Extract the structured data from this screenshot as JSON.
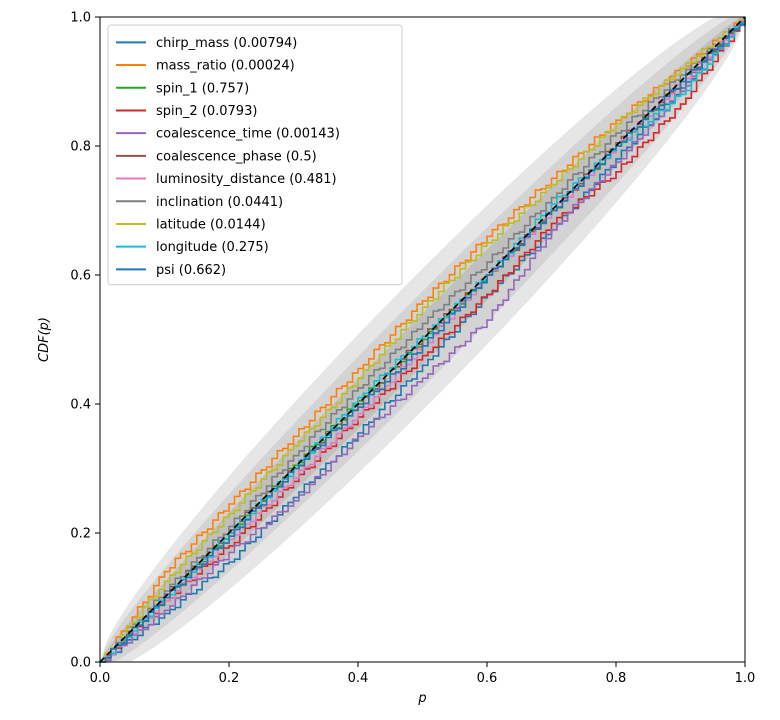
{
  "chart_data": {
    "type": "line",
    "title": "",
    "xlabel": "p",
    "ylabel": "CDF(p)",
    "xlim": [
      0,
      1
    ],
    "ylim": [
      0,
      1
    ],
    "x_ticks": [
      "0.0",
      "0.2",
      "0.4",
      "0.6",
      "0.8",
      "1.0"
    ],
    "y_ticks": [
      "0.0",
      "0.2",
      "0.4",
      "0.6",
      "0.8",
      "1.0"
    ],
    "grid": false,
    "legend_position": "top-left",
    "confidence_bands": {
      "description_levels": [
        "1-sigma",
        "2-sigma",
        "3-sigma"
      ],
      "half_width_at_p_0_5": [
        0.04,
        0.075,
        0.11
      ],
      "colors": [
        "#c0c0c0",
        "#d3d3d3",
        "#e6e6e6"
      ]
    },
    "diagonal": {
      "style": "dashed",
      "color": "#000000"
    },
    "series": [
      {
        "name": "chirp_mass (0.00794)",
        "color": "#1f77b4",
        "x": [
          0,
          0.1,
          0.2,
          0.3,
          0.4,
          0.5,
          0.6,
          0.7,
          0.8,
          0.9,
          1.0
        ],
        "y": [
          0,
          0.075,
          0.155,
          0.255,
          0.355,
          0.46,
          0.57,
          0.67,
          0.78,
          0.89,
          1.0
        ]
      },
      {
        "name": "mass_ratio (0.00024)",
        "color": "#ff7f0e",
        "x": [
          0,
          0.1,
          0.2,
          0.3,
          0.4,
          0.5,
          0.6,
          0.7,
          0.8,
          0.9,
          1.0
        ],
        "y": [
          0,
          0.14,
          0.245,
          0.35,
          0.455,
          0.56,
          0.66,
          0.75,
          0.84,
          0.92,
          1.0
        ]
      },
      {
        "name": "spin_1 (0.757)",
        "color": "#2ca02c",
        "x": [
          0,
          0.1,
          0.2,
          0.3,
          0.4,
          0.5,
          0.6,
          0.7,
          0.8,
          0.9,
          1.0
        ],
        "y": [
          0,
          0.1,
          0.2,
          0.305,
          0.405,
          0.5,
          0.6,
          0.7,
          0.8,
          0.9,
          1.0
        ]
      },
      {
        "name": "spin_2 (0.0793)",
        "color": "#d62728",
        "x": [
          0,
          0.1,
          0.2,
          0.3,
          0.4,
          0.5,
          0.6,
          0.7,
          0.8,
          0.9,
          1.0
        ],
        "y": [
          0,
          0.095,
          0.18,
          0.28,
          0.38,
          0.475,
          0.57,
          0.68,
          0.76,
          0.865,
          1.0
        ]
      },
      {
        "name": "coalescence_time (0.00143)",
        "color": "#9467bd",
        "x": [
          0,
          0.1,
          0.2,
          0.3,
          0.4,
          0.5,
          0.6,
          0.7,
          0.8,
          0.9,
          1.0
        ],
        "y": [
          0,
          0.08,
          0.17,
          0.25,
          0.35,
          0.44,
          0.53,
          0.67,
          0.775,
          0.885,
          1.0
        ]
      },
      {
        "name": "coalescence_phase (0.5)",
        "color": "#8c564b",
        "x": [
          0,
          0.1,
          0.2,
          0.3,
          0.4,
          0.5,
          0.6,
          0.7,
          0.8,
          0.9,
          1.0
        ],
        "y": [
          0,
          0.105,
          0.205,
          0.3,
          0.4,
          0.505,
          0.6,
          0.7,
          0.805,
          0.9,
          1.0
        ]
      },
      {
        "name": "luminosity_distance (0.481)",
        "color": "#e377c2",
        "x": [
          0,
          0.1,
          0.2,
          0.3,
          0.4,
          0.5,
          0.6,
          0.7,
          0.8,
          0.9,
          1.0
        ],
        "y": [
          0,
          0.095,
          0.19,
          0.285,
          0.385,
          0.49,
          0.6,
          0.7,
          0.8,
          0.9,
          1.0
        ]
      },
      {
        "name": "inclination (0.0441)",
        "color": "#7f7f7f",
        "x": [
          0,
          0.1,
          0.2,
          0.3,
          0.4,
          0.5,
          0.6,
          0.7,
          0.8,
          0.9,
          1.0
        ],
        "y": [
          0,
          0.11,
          0.21,
          0.32,
          0.425,
          0.525,
          0.62,
          0.72,
          0.82,
          0.91,
          1.0
        ]
      },
      {
        "name": "latitude (0.0144)",
        "color": "#bcbd22",
        "x": [
          0,
          0.1,
          0.2,
          0.3,
          0.4,
          0.5,
          0.6,
          0.7,
          0.8,
          0.9,
          1.0
        ],
        "y": [
          0,
          0.125,
          0.23,
          0.335,
          0.44,
          0.55,
          0.65,
          0.74,
          0.835,
          0.92,
          1.0
        ]
      },
      {
        "name": "longitude (0.275)",
        "color": "#17becf",
        "x": [
          0,
          0.1,
          0.2,
          0.3,
          0.4,
          0.5,
          0.6,
          0.7,
          0.8,
          0.9,
          1.0
        ],
        "y": [
          0,
          0.1,
          0.2,
          0.3,
          0.41,
          0.505,
          0.6,
          0.71,
          0.8,
          0.88,
          1.0
        ]
      },
      {
        "name": "psi (0.662)",
        "color": "#1f77b4",
        "x": [
          0,
          0.1,
          0.2,
          0.3,
          0.4,
          0.5,
          0.6,
          0.7,
          0.8,
          0.9,
          1.0
        ],
        "y": [
          0,
          0.1,
          0.195,
          0.3,
          0.395,
          0.49,
          0.6,
          0.7,
          0.8,
          0.9,
          1.0
        ]
      }
    ]
  }
}
